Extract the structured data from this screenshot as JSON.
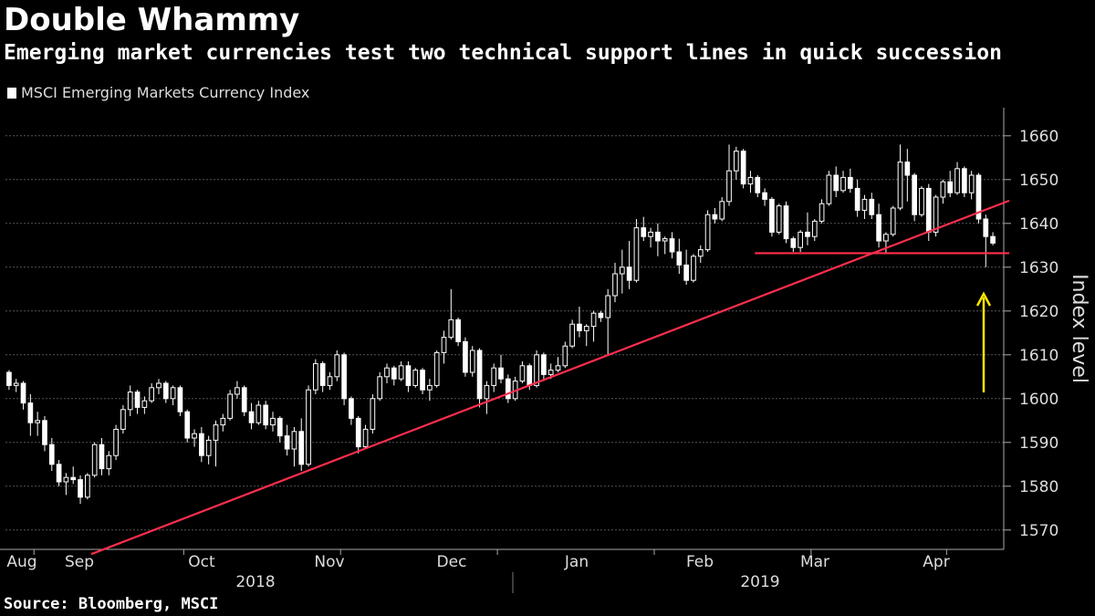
{
  "header": {
    "title": "Double Whammy",
    "subtitle": "Emerging market currencies test two technical support lines in quick succession"
  },
  "footer": {
    "source": "Source: Bloomberg, MSCI"
  },
  "colors": {
    "background": "#000000",
    "candle": "#ffffff",
    "support_line": "#ff2e4d",
    "arrow": "#ffe600",
    "grid": "#555555"
  },
  "chart_data": {
    "type": "candlestick",
    "title": "Double Whammy",
    "legend": [
      "MSCI Emerging Markets Currency Index"
    ],
    "ylabel": "Index level",
    "ylim": [
      1566,
      1666
    ],
    "yticks": [
      1570,
      1580,
      1590,
      1600,
      1610,
      1620,
      1630,
      1640,
      1650,
      1660
    ],
    "xticks": [
      "Aug",
      "Sep",
      "Oct",
      "Nov",
      "Dec",
      "Jan",
      "Feb",
      "Mar",
      "Apr"
    ],
    "year_labels": [
      "2018",
      "2019"
    ],
    "support_lines": [
      {
        "name": "rising trendline",
        "from": [
          0,
          1564.5
        ],
        "to": [
          139,
          1645.2
        ]
      },
      {
        "name": "horizontal support",
        "from": [
          105,
          1633.2
        ],
        "to": [
          139,
          1633.2
        ]
      }
    ],
    "annotation": "yellow arrow marking test of support",
    "series": [
      {
        "name": "MSCI Emerging Markets Currency Index",
        "ohlc": [
          [
            1606.0,
            1606.5,
            1602.0,
            1603.0
          ],
          [
            1603.0,
            1604.5,
            1601.5,
            1603.5
          ],
          [
            1603.5,
            1604.0,
            1597.5,
            1599.0
          ],
          [
            1599.0,
            1601.0,
            1591.5,
            1594.5
          ],
          [
            1594.5,
            1597.0,
            1591.5,
            1595.0
          ],
          [
            1595.0,
            1596.0,
            1588.0,
            1589.5
          ],
          [
            1589.5,
            1591.0,
            1583.5,
            1585.0
          ],
          [
            1585.0,
            1586.0,
            1580.0,
            1581.0
          ],
          [
            1581.0,
            1583.0,
            1578.0,
            1582.0
          ],
          [
            1582.0,
            1584.5,
            1580.5,
            1581.5
          ],
          [
            1581.5,
            1582.5,
            1576.0,
            1577.5
          ],
          [
            1577.5,
            1583.0,
            1577.0,
            1582.5
          ],
          [
            1582.5,
            1590.0,
            1582.0,
            1589.5
          ],
          [
            1589.5,
            1591.0,
            1582.5,
            1584.0
          ],
          [
            1584.0,
            1588.0,
            1582.5,
            1587.0
          ],
          [
            1587.0,
            1594.0,
            1586.0,
            1593.0
          ],
          [
            1593.0,
            1598.5,
            1592.0,
            1597.5
          ],
          [
            1597.5,
            1603.0,
            1596.0,
            1601.5
          ],
          [
            1601.5,
            1602.0,
            1596.5,
            1598.0
          ],
          [
            1598.0,
            1600.5,
            1596.5,
            1599.5
          ],
          [
            1599.5,
            1603.5,
            1599.0,
            1602.5
          ],
          [
            1602.5,
            1604.5,
            1601.0,
            1603.5
          ],
          [
            1603.5,
            1604.0,
            1599.0,
            1600.0
          ],
          [
            1600.0,
            1603.0,
            1598.5,
            1602.5
          ],
          [
            1602.5,
            1603.0,
            1596.0,
            1597.0
          ],
          [
            1597.0,
            1597.5,
            1590.0,
            1591.0
          ],
          [
            1591.0,
            1593.0,
            1589.0,
            1592.0
          ],
          [
            1592.0,
            1593.5,
            1585.5,
            1587.0
          ],
          [
            1587.0,
            1591.5,
            1585.0,
            1590.5
          ],
          [
            1590.5,
            1595.0,
            1584.5,
            1594.0
          ],
          [
            1594.0,
            1596.5,
            1592.5,
            1595.5
          ],
          [
            1595.5,
            1602.0,
            1595.0,
            1601.0
          ],
          [
            1601.0,
            1604.0,
            1600.0,
            1602.5
          ],
          [
            1602.5,
            1603.0,
            1596.0,
            1597.0
          ],
          [
            1597.0,
            1599.0,
            1593.0,
            1594.5
          ],
          [
            1594.5,
            1599.5,
            1594.0,
            1598.5
          ],
          [
            1598.5,
            1599.5,
            1593.0,
            1594.0
          ],
          [
            1594.0,
            1597.0,
            1592.5,
            1595.5
          ],
          [
            1595.5,
            1596.0,
            1590.0,
            1591.5
          ],
          [
            1591.5,
            1594.0,
            1587.0,
            1588.5
          ],
          [
            1588.5,
            1593.5,
            1584.5,
            1592.5
          ],
          [
            1592.5,
            1595.5,
            1583.5,
            1585.0
          ],
          [
            1585.0,
            1603.0,
            1584.5,
            1602.0
          ],
          [
            1602.0,
            1609.0,
            1601.0,
            1608.0
          ],
          [
            1608.0,
            1608.5,
            1601.5,
            1603.0
          ],
          [
            1603.0,
            1606.0,
            1602.0,
            1605.0
          ],
          [
            1605.0,
            1611.0,
            1604.0,
            1610.0
          ],
          [
            1610.0,
            1610.5,
            1598.5,
            1600.0
          ],
          [
            1600.0,
            1600.5,
            1594.0,
            1595.5
          ],
          [
            1595.5,
            1596.0,
            1587.5,
            1589.0
          ],
          [
            1589.0,
            1594.0,
            1588.5,
            1593.0
          ],
          [
            1593.0,
            1601.0,
            1592.0,
            1600.0
          ],
          [
            1600.0,
            1606.0,
            1599.5,
            1605.0
          ],
          [
            1605.0,
            1608.0,
            1603.5,
            1607.0
          ],
          [
            1607.0,
            1607.5,
            1603.0,
            1604.5
          ],
          [
            1604.5,
            1608.5,
            1604.0,
            1607.5
          ],
          [
            1607.5,
            1608.5,
            1601.5,
            1603.0
          ],
          [
            1603.0,
            1607.0,
            1602.5,
            1606.5
          ],
          [
            1606.5,
            1607.0,
            1601.0,
            1602.0
          ],
          [
            1602.0,
            1604.5,
            1599.5,
            1603.0
          ],
          [
            1603.0,
            1611.0,
            1602.5,
            1610.5
          ],
          [
            1610.5,
            1615.5,
            1608.0,
            1614.0
          ],
          [
            1614.0,
            1625.0,
            1613.5,
            1618.0
          ],
          [
            1618.0,
            1618.5,
            1612.0,
            1613.0
          ],
          [
            1613.0,
            1614.0,
            1605.0,
            1606.0
          ],
          [
            1606.0,
            1612.0,
            1605.0,
            1611.0
          ],
          [
            1611.0,
            1611.5,
            1598.0,
            1600.0
          ],
          [
            1600.0,
            1604.0,
            1596.5,
            1603.0
          ],
          [
            1603.0,
            1608.0,
            1601.5,
            1607.0
          ],
          [
            1607.0,
            1610.0,
            1603.5,
            1604.5
          ],
          [
            1604.5,
            1605.5,
            1599.0,
            1600.0
          ],
          [
            1600.0,
            1605.0,
            1599.5,
            1604.0
          ],
          [
            1604.0,
            1608.5,
            1603.5,
            1607.5
          ],
          [
            1607.5,
            1608.0,
            1602.0,
            1603.0
          ],
          [
            1603.0,
            1611.0,
            1602.5,
            1610.0
          ],
          [
            1610.0,
            1610.5,
            1604.0,
            1605.5
          ],
          [
            1605.5,
            1608.0,
            1604.5,
            1606.5
          ],
          [
            1606.5,
            1609.5,
            1606.0,
            1607.5
          ],
          [
            1607.5,
            1613.0,
            1607.0,
            1612.0
          ],
          [
            1612.0,
            1618.0,
            1611.5,
            1617.0
          ],
          [
            1617.0,
            1621.0,
            1614.0,
            1615.5
          ],
          [
            1615.5,
            1617.0,
            1612.0,
            1616.5
          ],
          [
            1616.5,
            1620.0,
            1613.0,
            1619.5
          ],
          [
            1619.5,
            1620.0,
            1617.5,
            1618.5
          ],
          [
            1618.5,
            1625.0,
            1610.0,
            1623.5
          ],
          [
            1623.5,
            1631.0,
            1622.0,
            1628.5
          ],
          [
            1628.5,
            1634.0,
            1624.0,
            1630.0
          ],
          [
            1630.0,
            1636.0,
            1625.0,
            1627.0
          ],
          [
            1627.0,
            1641.0,
            1626.5,
            1639.0
          ],
          [
            1639.0,
            1641.5,
            1636.0,
            1637.0
          ],
          [
            1637.0,
            1639.0,
            1634.5,
            1638.0
          ],
          [
            1638.0,
            1640.0,
            1632.5,
            1636.0
          ],
          [
            1636.0,
            1637.0,
            1633.0,
            1636.5
          ],
          [
            1636.5,
            1638.0,
            1632.0,
            1633.5
          ],
          [
            1633.5,
            1636.5,
            1628.5,
            1630.5
          ],
          [
            1630.5,
            1634.0,
            1626.0,
            1627.0
          ],
          [
            1627.0,
            1633.0,
            1626.5,
            1632.5
          ],
          [
            1632.5,
            1635.0,
            1631.0,
            1634.0
          ],
          [
            1634.0,
            1643.0,
            1633.5,
            1642.0
          ],
          [
            1642.0,
            1643.5,
            1640.0,
            1641.0
          ],
          [
            1641.0,
            1646.0,
            1640.5,
            1645.0
          ],
          [
            1645.0,
            1658.0,
            1644.0,
            1652.0
          ],
          [
            1652.0,
            1657.5,
            1650.0,
            1656.5
          ],
          [
            1656.5,
            1657.0,
            1648.0,
            1649.0
          ],
          [
            1649.0,
            1652.0,
            1647.0,
            1650.5
          ],
          [
            1650.5,
            1651.0,
            1646.0,
            1647.0
          ],
          [
            1647.0,
            1648.0,
            1644.0,
            1645.5
          ],
          [
            1645.5,
            1646.0,
            1637.0,
            1638.0
          ],
          [
            1638.0,
            1644.5,
            1637.5,
            1644.0
          ],
          [
            1644.0,
            1645.0,
            1635.5,
            1636.5
          ],
          [
            1636.5,
            1637.0,
            1633.5,
            1634.5
          ],
          [
            1634.5,
            1638.5,
            1633.5,
            1638.0
          ],
          [
            1638.0,
            1642.5,
            1635.0,
            1637.0
          ],
          [
            1637.0,
            1641.0,
            1636.0,
            1640.5
          ],
          [
            1640.5,
            1645.5,
            1640.0,
            1644.5
          ],
          [
            1644.5,
            1652.0,
            1644.0,
            1651.0
          ],
          [
            1651.0,
            1653.0,
            1646.0,
            1647.5
          ],
          [
            1647.5,
            1652.0,
            1647.0,
            1650.5
          ],
          [
            1650.5,
            1652.5,
            1647.0,
            1648.0
          ],
          [
            1648.0,
            1650.0,
            1641.5,
            1643.0
          ],
          [
            1643.0,
            1646.5,
            1641.0,
            1645.5
          ],
          [
            1645.5,
            1647.0,
            1641.0,
            1642.0
          ],
          [
            1642.0,
            1644.5,
            1634.5,
            1636.0
          ],
          [
            1636.0,
            1638.0,
            1633.0,
            1637.5
          ],
          [
            1637.5,
            1644.0,
            1637.0,
            1643.5
          ],
          [
            1643.5,
            1658.0,
            1643.0,
            1654.0
          ],
          [
            1654.0,
            1657.0,
            1645.0,
            1651.0
          ],
          [
            1651.0,
            1651.5,
            1640.5,
            1642.0
          ],
          [
            1642.0,
            1648.5,
            1641.5,
            1648.0
          ],
          [
            1648.0,
            1649.0,
            1636.0,
            1638.0
          ],
          [
            1638.0,
            1646.5,
            1637.0,
            1646.0
          ],
          [
            1646.0,
            1650.0,
            1644.5,
            1649.5
          ],
          [
            1649.5,
            1652.0,
            1646.0,
            1647.0
          ],
          [
            1647.0,
            1654.0,
            1646.5,
            1652.5
          ],
          [
            1652.5,
            1653.0,
            1646.0,
            1647.0
          ],
          [
            1647.0,
            1652.0,
            1645.5,
            1651.0
          ],
          [
            1651.0,
            1651.5,
            1640.0,
            1641.0
          ],
          [
            1641.0,
            1642.0,
            1630.0,
            1637.0
          ],
          [
            1637.0,
            1638.0,
            1635.0,
            1635.5
          ]
        ]
      }
    ]
  }
}
